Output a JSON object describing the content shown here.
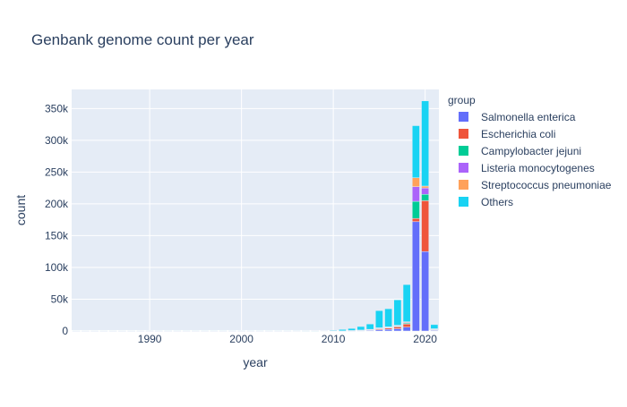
{
  "chart_data": {
    "type": "bar",
    "stacked": true,
    "title": "Genbank genome count per year",
    "xlabel": "year",
    "ylabel": "count",
    "legend_title": "group",
    "legend_position": "right",
    "xlim": [
      1981.5,
      2021.5
    ],
    "ylim": [
      0,
      380000
    ],
    "x_ticks": [
      1990,
      2000,
      2010,
      2020
    ],
    "y_ticks": [
      {
        "value": 0,
        "label": "0"
      },
      {
        "value": 50000,
        "label": "50k"
      },
      {
        "value": 100000,
        "label": "100k"
      },
      {
        "value": 150000,
        "label": "150k"
      },
      {
        "value": 200000,
        "label": "200k"
      },
      {
        "value": 250000,
        "label": "250k"
      },
      {
        "value": 300000,
        "label": "300k"
      },
      {
        "value": 350000,
        "label": "350k"
      }
    ],
    "grid": true,
    "background_color": "#e5ecf6",
    "x": [
      1982,
      1983,
      1984,
      1985,
      1986,
      1987,
      1988,
      1989,
      1990,
      1991,
      1992,
      1993,
      1994,
      1995,
      1996,
      1997,
      1998,
      1999,
      2000,
      2001,
      2002,
      2003,
      2004,
      2005,
      2006,
      2007,
      2008,
      2009,
      2010,
      2011,
      2012,
      2013,
      2014,
      2015,
      2016,
      2017,
      2018,
      2019,
      2020,
      2021
    ],
    "series": [
      {
        "name": "Salmonella enterica",
        "color": "#636efa",
        "values": [
          0,
          0,
          0,
          0,
          0,
          0,
          0,
          0,
          0,
          0,
          0,
          0,
          0,
          0,
          0,
          0,
          0,
          0,
          0,
          0,
          0,
          0,
          0,
          0,
          0,
          0,
          0,
          0,
          0,
          100,
          300,
          500,
          1000,
          2000,
          2500,
          3500,
          6000,
          172000,
          125000,
          1000
        ]
      },
      {
        "name": "Escherichia coli",
        "color": "#ef553b",
        "values": [
          0,
          0,
          0,
          0,
          0,
          0,
          0,
          0,
          0,
          0,
          0,
          0,
          0,
          0,
          0,
          0,
          0,
          0,
          0,
          0,
          0,
          0,
          0,
          0,
          0,
          0,
          0,
          0,
          0,
          100,
          200,
          400,
          700,
          1500,
          2000,
          3000,
          5000,
          5000,
          80000,
          1000
        ]
      },
      {
        "name": "Campylobacter jejuni",
        "color": "#00cc96",
        "values": [
          0,
          0,
          0,
          0,
          0,
          0,
          0,
          0,
          0,
          0,
          0,
          0,
          0,
          0,
          0,
          0,
          0,
          0,
          0,
          0,
          0,
          0,
          0,
          0,
          0,
          0,
          0,
          0,
          0,
          0,
          100,
          200,
          300,
          500,
          700,
          1000,
          1500,
          27000,
          10000,
          500
        ]
      },
      {
        "name": "Listeria monocytogenes",
        "color": "#ab63fa",
        "values": [
          0,
          0,
          0,
          0,
          0,
          0,
          0,
          0,
          0,
          0,
          0,
          0,
          0,
          0,
          0,
          0,
          0,
          0,
          0,
          0,
          0,
          0,
          0,
          0,
          0,
          0,
          0,
          0,
          0,
          0,
          100,
          200,
          300,
          500,
          600,
          800,
          1000,
          23000,
          10000,
          500
        ]
      },
      {
        "name": "Streptococcus pneumoniae",
        "color": "#ffa15a",
        "values": [
          0,
          0,
          0,
          0,
          0,
          0,
          0,
          0,
          0,
          0,
          0,
          0,
          0,
          0,
          0,
          0,
          0,
          0,
          0,
          0,
          0,
          0,
          0,
          0,
          0,
          0,
          0,
          0,
          0,
          0,
          100,
          200,
          300,
          500,
          600,
          700,
          1000,
          14000,
          3000,
          500
        ]
      },
      {
        "name": "Others",
        "color": "#19d3f3",
        "values": [
          50,
          50,
          50,
          50,
          50,
          50,
          50,
          50,
          100,
          100,
          100,
          100,
          100,
          100,
          100,
          100,
          100,
          100,
          100,
          100,
          100,
          100,
          100,
          100,
          200,
          300,
          400,
          600,
          1000,
          2200,
          3200,
          5500,
          8400,
          27000,
          28600,
          40000,
          58500,
          82000,
          134000,
          6500
        ]
      }
    ]
  }
}
